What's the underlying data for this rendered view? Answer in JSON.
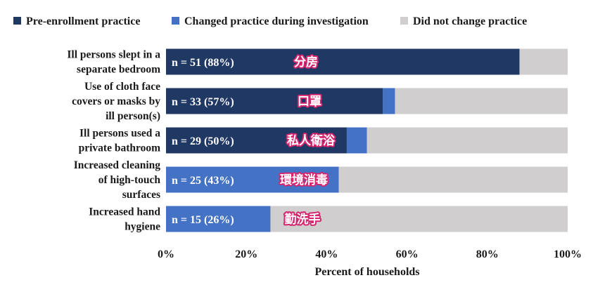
{
  "chart_data": {
    "type": "bar",
    "orientation": "horizontal",
    "stacked": true,
    "title": "",
    "xlabel": "Percent of households",
    "ylabel": "",
    "xlim": [
      0,
      100
    ],
    "x_ticks": [
      "0%",
      "20%",
      "40%",
      "60%",
      "80%",
      "100%"
    ],
    "grid": false,
    "legend_position": "top",
    "categories": [
      [
        "Ill persons slept in a",
        "separate bedroom"
      ],
      [
        "Use of cloth face",
        "covers or masks by",
        "ill person(s)"
      ],
      [
        "Ill persons used a",
        "private bathroom"
      ],
      [
        "Increased cleaning",
        "of high-touch",
        "surfaces"
      ],
      [
        "Increased hand",
        "hygiene"
      ]
    ],
    "series": [
      {
        "name": "Pre-enrollment practice",
        "color": "#1f3864",
        "values": [
          88,
          54,
          45,
          0,
          0
        ]
      },
      {
        "name": "Changed practice during investigation",
        "color": "#4472c4",
        "values": [
          0,
          3,
          5,
          43,
          26
        ]
      },
      {
        "name": "Did not change practice",
        "color": "#d0cece",
        "values": [
          12,
          43,
          50,
          57,
          74
        ]
      }
    ],
    "data_labels": [
      "n = 51 (88%)",
      "n = 33 (57%)",
      "n = 29 (50%)",
      "n = 25 (43%)",
      "n = 15 (26%)"
    ],
    "annotations": [
      "分房",
      "口罩",
      "私人衛浴",
      "環境消毒",
      "勤洗手"
    ]
  }
}
